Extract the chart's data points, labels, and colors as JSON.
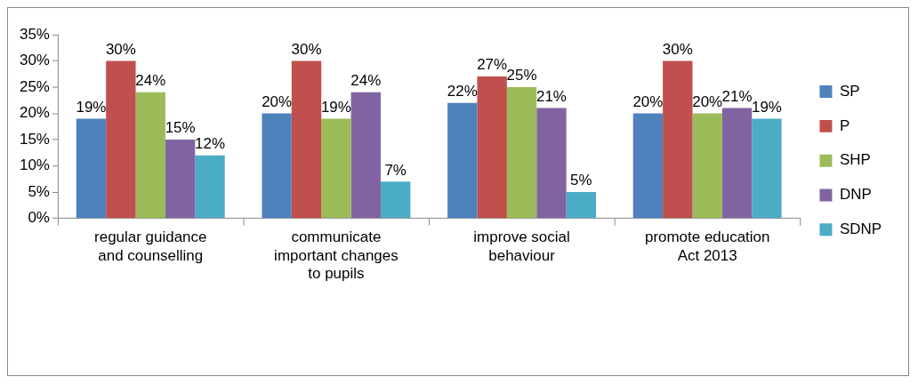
{
  "chart_data": {
    "type": "bar",
    "categories": [
      "regular guidance and counselling",
      "communicate important changes to pupils",
      "improve social behaviour",
      "promote education Act 2013"
    ],
    "series": [
      {
        "name": "SP",
        "color": "#4f81bd",
        "values": [
          19,
          20,
          22,
          20
        ],
        "value_labels": [
          "19%",
          "20%",
          "22%",
          "20%"
        ]
      },
      {
        "name": "P",
        "color": "#c0504d",
        "values": [
          30,
          30,
          27,
          30
        ],
        "value_labels": [
          "30%",
          "30%",
          "27%",
          "30%"
        ]
      },
      {
        "name": "SHP",
        "color": "#9bbb59",
        "values": [
          24,
          19,
          25,
          20
        ],
        "value_labels": [
          "24%",
          "19%",
          "25%",
          "20%"
        ]
      },
      {
        "name": "DNP",
        "color": "#8064a2",
        "values": [
          15,
          24,
          21,
          21
        ],
        "value_labels": [
          "15%",
          "24%",
          "21%",
          "21%"
        ]
      },
      {
        "name": "SDNP",
        "color": "#4bacc6",
        "values": [
          12,
          7,
          5,
          19
        ],
        "value_labels": [
          "12%",
          "7%",
          "5%",
          "19%"
        ]
      }
    ],
    "ylim": [
      0,
      35
    ],
    "yticks": [
      {
        "value": 0,
        "label": "0%"
      },
      {
        "value": 5,
        "label": "5%"
      },
      {
        "value": 10,
        "label": "10%"
      },
      {
        "value": 15,
        "label": "15%"
      },
      {
        "value": 20,
        "label": "20%"
      },
      {
        "value": 25,
        "label": "25%"
      },
      {
        "value": 30,
        "label": "30%"
      },
      {
        "value": 35,
        "label": "35%"
      }
    ],
    "grid": false,
    "legend": "right"
  }
}
